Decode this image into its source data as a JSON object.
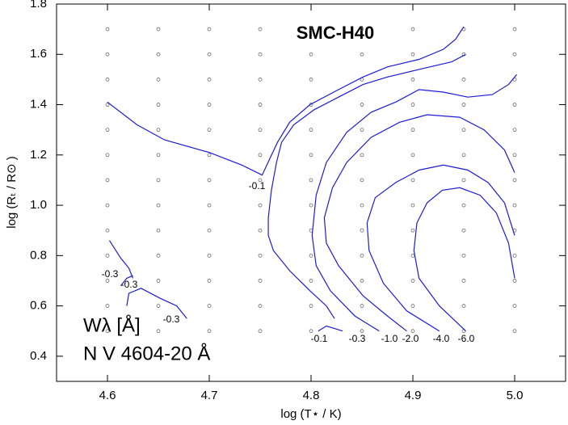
{
  "chart_data": {
    "type": "contour",
    "title": "SMC-H40",
    "x_label": "log (T⋆ / K)",
    "y_label": "log (Rₜ / R⊙ )",
    "annotations": [
      "Wλ [Å]",
      "N V 4604-20 Å"
    ],
    "xlim": [
      4.55,
      5.05
    ],
    "ylim": [
      0.3,
      1.8
    ],
    "xticks": [
      4.6,
      4.7,
      4.8,
      4.9,
      {
        "value": 5,
        "label": "5.0"
      }
    ],
    "yticks": [
      0.4,
      0.6,
      0.8,
      {
        "value": 1,
        "label": "1.0"
      },
      1.2,
      1.4,
      1.6,
      1.8
    ],
    "model_x": [
      4.6,
      4.65,
      4.7,
      4.75,
      4.8,
      4.85,
      4.9,
      4.95,
      5.0
    ],
    "model_y": [
      0.5,
      0.6,
      0.7,
      0.8,
      0.9,
      1.0,
      1.1,
      1.2,
      1.3,
      1.4,
      1.5,
      1.6,
      1.7
    ],
    "color": "#1c1cd6",
    "series": [
      {
        "name": "-0.1",
        "x": [
          4.6,
          4.629,
          4.656,
          4.7,
          4.732,
          4.752,
          4.76,
          4.767,
          4.779,
          4.799,
          4.827,
          4.851,
          4.875,
          4.906,
          4.93,
          4.942,
          4.95
        ],
        "y": [
          1.41,
          1.32,
          1.26,
          1.21,
          1.16,
          1.12,
          1.19,
          1.25,
          1.33,
          1.4,
          1.46,
          1.51,
          1.55,
          1.58,
          1.62,
          1.66,
          1.71
        ]
      },
      {
        "name": "-0.1",
        "x": [
          4.807,
          4.815,
          4.823,
          4.831
        ],
        "y": [
          0.5,
          0.52,
          0.51,
          0.5
        ]
      },
      {
        "name": "-0.3",
        "x": [
          4.952,
          4.938,
          4.906,
          4.875,
          4.851,
          4.827,
          4.803,
          4.783,
          4.771,
          4.766,
          4.761,
          4.758,
          4.758,
          4.763,
          4.779,
          4.799,
          4.815,
          4.823
        ],
        "y": [
          1.6,
          1.57,
          1.54,
          1.51,
          1.48,
          1.43,
          1.38,
          1.32,
          1.25,
          1.17,
          1.06,
          0.95,
          0.88,
          0.82,
          0.74,
          0.66,
          0.6,
          0.55
        ]
      },
      {
        "name": "-1.0",
        "x": [
          5.002,
          4.994,
          4.978,
          4.954,
          4.93,
          4.906,
          4.883,
          4.859,
          4.835,
          4.815,
          4.805,
          4.801,
          4.805,
          4.819,
          4.843,
          4.867
        ],
        "y": [
          1.52,
          1.48,
          1.44,
          1.43,
          1.45,
          1.46,
          1.41,
          1.37,
          1.29,
          1.17,
          1.04,
          0.88,
          0.76,
          0.66,
          0.56,
          0.5
        ]
      },
      {
        "name": "-2.0",
        "x": [
          5.0,
          4.99,
          4.97,
          4.946,
          4.914,
          4.887,
          4.859,
          4.835,
          4.821,
          4.813,
          4.815,
          4.827,
          4.851,
          4.875,
          4.894
        ],
        "y": [
          1.13,
          1.22,
          1.3,
          1.35,
          1.36,
          1.33,
          1.27,
          1.17,
          1.07,
          0.95,
          0.85,
          0.76,
          0.64,
          0.56,
          0.5
        ]
      },
      {
        "name": "-4.0",
        "x": [
          5.0,
          4.99,
          4.974,
          4.954,
          4.93,
          4.906,
          4.883,
          4.863,
          4.855,
          4.857,
          4.871,
          4.894,
          4.926
        ],
        "y": [
          0.88,
          1.01,
          1.09,
          1.14,
          1.16,
          1.14,
          1.09,
          1.03,
          0.93,
          0.82,
          0.69,
          0.58,
          0.5
        ]
      },
      {
        "name": "-6.0",
        "x": [
          5.0,
          4.994,
          4.982,
          4.966,
          4.946,
          4.929,
          4.914,
          4.904,
          4.901,
          4.906,
          4.926,
          4.952
        ],
        "y": [
          0.71,
          0.85,
          0.97,
          1.04,
          1.07,
          1.06,
          1.01,
          0.93,
          0.82,
          0.71,
          0.6,
          0.5
        ]
      },
      {
        "name": "-0.3",
        "x": [
          4.602,
          4.613,
          4.621,
          4.625
        ],
        "y": [
          0.86,
          0.79,
          0.75,
          0.71
        ]
      },
      {
        "name": "-0.3",
        "x": [
          4.613,
          4.619,
          4.625
        ],
        "y": [
          0.68,
          0.71,
          0.72
        ]
      },
      {
        "name": "-0.3",
        "x": [
          4.619,
          4.621,
          4.633,
          4.652,
          4.668,
          4.678
        ],
        "y": [
          0.6,
          0.65,
          0.67,
          0.63,
          0.6,
          0.55
        ]
      }
    ]
  }
}
